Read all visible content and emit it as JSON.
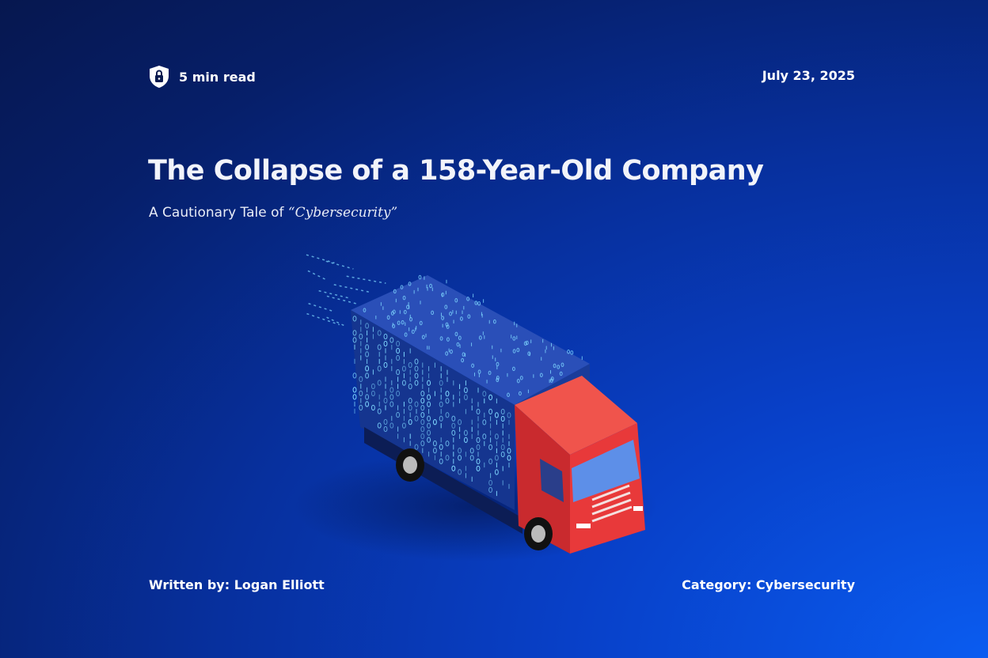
{
  "header": {
    "read_time": "5 min read",
    "date": "July 23, 2025",
    "icon": "shield-lock-icon"
  },
  "title": "The Collapse of a 158-Year-Old Company",
  "subtitle": {
    "prefix": "A Cautionary Tale of ",
    "highlight": "“Cybersecurity”"
  },
  "footer": {
    "author": "Written by: Logan Elliott",
    "category": "Category: Cybersecurity"
  },
  "colors": {
    "truck_cab": "#e8393a",
    "box": "#1d3f9e",
    "digits": "#7fd8ff"
  }
}
